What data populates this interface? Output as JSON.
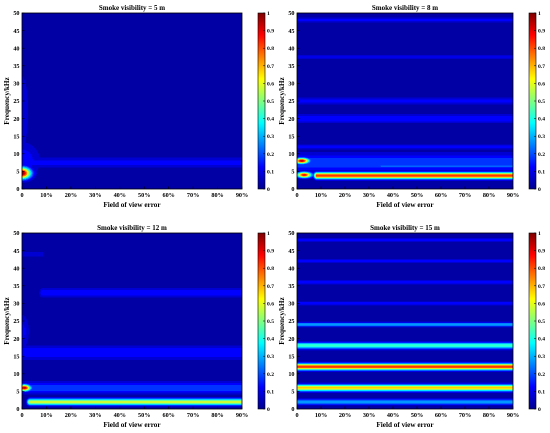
{
  "colormap": {
    "name": "jet",
    "stops": [
      "#00008F",
      "#0000FF",
      "#0080FF",
      "#00FFFF",
      "#80FF80",
      "#FFFF00",
      "#FF8000",
      "#FF0000",
      "#800000"
    ]
  },
  "chart_data": [
    {
      "type": "heatmap",
      "title": "Smoke visibility = 5 m",
      "xlabel": "Field of view error",
      "ylabel": "Frequency/kHz",
      "xticks": [
        "0",
        "10%",
        "20%",
        "30%",
        "40%",
        "50%",
        "60%",
        "70%",
        "80%",
        "90%"
      ],
      "yticks": [
        "0",
        "5",
        "10",
        "15",
        "20",
        "25",
        "30",
        "35",
        "40",
        "45",
        "50"
      ],
      "colorbar_ticks": [
        "0",
        "0.1",
        "0.2",
        "0.3",
        "0.4",
        "0.5",
        "0.6",
        "0.7",
        "0.8",
        "0.9",
        "1"
      ],
      "xlim": [
        0,
        90
      ],
      "ylim": [
        0,
        50
      ],
      "clim": [
        0,
        1
      ],
      "hotspots": [
        {
          "x": 0,
          "y": 4.5,
          "sx": 3.5,
          "sy": 1.6,
          "value": 1.0
        },
        {
          "x": 0,
          "y": 8,
          "sx": 7,
          "sy": 5,
          "value": 0.15
        },
        {
          "x": 0,
          "y": 22,
          "sx": 3,
          "sy": 12,
          "value": 0.1
        }
      ],
      "bands": [
        {
          "y": 7.5,
          "sy": 1.5,
          "value": 0.12,
          "x0": 0,
          "x1": 90
        }
      ]
    },
    {
      "type": "heatmap",
      "title": "Smoke visibility = 8 m",
      "xlabel": "Field of view error",
      "ylabel": "Frequency/kHz",
      "xticks": [
        "0",
        "10%",
        "20%",
        "30%",
        "40%",
        "50%",
        "60%",
        "70%",
        "80%",
        "90%"
      ],
      "yticks": [
        "0",
        "5",
        "10",
        "15",
        "20",
        "25",
        "30",
        "35",
        "40",
        "45",
        "50"
      ],
      "colorbar_ticks": [
        "0",
        "0.1",
        "0.2",
        "0.3",
        "0.4",
        "0.5",
        "0.6",
        "0.7",
        "0.8",
        "0.9",
        "1"
      ],
      "xlim": [
        0,
        90
      ],
      "ylim": [
        0,
        50
      ],
      "clim": [
        0,
        1
      ],
      "hotspots": [
        {
          "x": 2,
          "y": 8,
          "sx": 3,
          "sy": 0.8,
          "value": 0.95
        },
        {
          "x": 3,
          "y": 4,
          "sx": 3,
          "sy": 0.8,
          "value": 0.9
        }
      ],
      "bands": [
        {
          "y": 3.8,
          "sy": 0.9,
          "value": 0.85,
          "x0": 8,
          "x1": 90
        },
        {
          "y": 6.5,
          "sy": 0.7,
          "value": 0.22,
          "x0": 35,
          "x1": 90
        },
        {
          "y": 7.5,
          "sy": 2.5,
          "value": 0.2,
          "x0": 0,
          "x1": 90
        },
        {
          "y": 12,
          "sy": 0.7,
          "value": 0.14,
          "x0": 0,
          "x1": 90
        },
        {
          "y": 20,
          "sy": 1.3,
          "value": 0.14,
          "x0": 0,
          "x1": 90
        },
        {
          "y": 25,
          "sy": 1,
          "value": 0.12,
          "x0": 0,
          "x1": 90
        },
        {
          "y": 37.5,
          "sy": 0.6,
          "value": 0.11,
          "x0": 0,
          "x1": 90
        },
        {
          "y": 48,
          "sy": 0.8,
          "value": 0.12,
          "x0": 0,
          "x1": 90
        }
      ]
    },
    {
      "type": "heatmap",
      "title": "Smoke visibility = 12 m",
      "xlabel": "Field of view error",
      "ylabel": "Frequency/kHz",
      "xticks": [
        "0",
        "10%",
        "20%",
        "30%",
        "40%",
        "50%",
        "60%",
        "70%",
        "80%",
        "90%"
      ],
      "yticks": [
        "0",
        "5",
        "10",
        "15",
        "20",
        "25",
        "30",
        "35",
        "40",
        "45",
        "50"
      ],
      "colorbar_ticks": [
        "0",
        "0.1",
        "0.2",
        "0.3",
        "0.4",
        "0.5",
        "0.6",
        "0.7",
        "0.8",
        "0.9",
        "1"
      ],
      "xlim": [
        0,
        90
      ],
      "ylim": [
        0,
        50
      ],
      "clim": [
        0,
        1
      ],
      "hotspots": [
        {
          "x": 1,
          "y": 6,
          "sx": 2.5,
          "sy": 0.9,
          "value": 0.95
        },
        {
          "x": 0,
          "y": 22,
          "sx": 3,
          "sy": 5,
          "value": 0.12
        }
      ],
      "bands": [
        {
          "y": 2,
          "sy": 0.9,
          "value": 0.6,
          "x0": 3,
          "x1": 90
        },
        {
          "y": 6,
          "sy": 1.6,
          "value": 0.2,
          "x0": 0,
          "x1": 90
        },
        {
          "y": 16,
          "sy": 2,
          "value": 0.15,
          "x0": 0,
          "x1": 90
        },
        {
          "y": 33,
          "sy": 1.3,
          "value": 0.14,
          "x0": 8,
          "x1": 90
        },
        {
          "y": 44,
          "sy": 0.8,
          "value": 0.1,
          "x0": 0,
          "x1": 8
        }
      ]
    },
    {
      "type": "heatmap",
      "title": "Smoke visibility = 15 m",
      "xlabel": "Field of view error",
      "ylabel": "Frequency/kHz",
      "xticks": [
        "0",
        "10%",
        "20%",
        "30%",
        "40%",
        "50%",
        "60%",
        "70%",
        "80%",
        "90%"
      ],
      "yticks": [
        "0",
        "5",
        "10",
        "15",
        "20",
        "25",
        "30",
        "35",
        "40",
        "45",
        "50"
      ],
      "colorbar_ticks": [
        "0",
        "0.1",
        "0.2",
        "0.3",
        "0.4",
        "0.5",
        "0.6",
        "0.7",
        "0.8",
        "0.9",
        "1"
      ],
      "xlim": [
        0,
        90
      ],
      "ylim": [
        0,
        50
      ],
      "clim": [
        0,
        1
      ],
      "hotspots": [],
      "bands": [
        {
          "y": 2,
          "sy": 0.8,
          "value": 0.3,
          "x0": 0,
          "x1": 90
        },
        {
          "y": 6,
          "sy": 0.9,
          "value": 0.7,
          "x0": 0,
          "x1": 90
        },
        {
          "y": 12,
          "sy": 0.9,
          "value": 0.85,
          "x0": 0,
          "x1": 90
        },
        {
          "y": 18,
          "sy": 0.9,
          "value": 0.45,
          "x0": 0,
          "x1": 90
        },
        {
          "y": 24,
          "sy": 0.6,
          "value": 0.3,
          "x0": 0,
          "x1": 90
        },
        {
          "y": 30,
          "sy": 0.6,
          "value": 0.14,
          "x0": 0,
          "x1": 90
        },
        {
          "y": 36,
          "sy": 0.6,
          "value": 0.14,
          "x0": 0,
          "x1": 90
        },
        {
          "y": 42,
          "sy": 0.6,
          "value": 0.13,
          "x0": 0,
          "x1": 90
        },
        {
          "y": 48,
          "sy": 0.6,
          "value": 0.13,
          "x0": 0,
          "x1": 90
        }
      ]
    }
  ]
}
